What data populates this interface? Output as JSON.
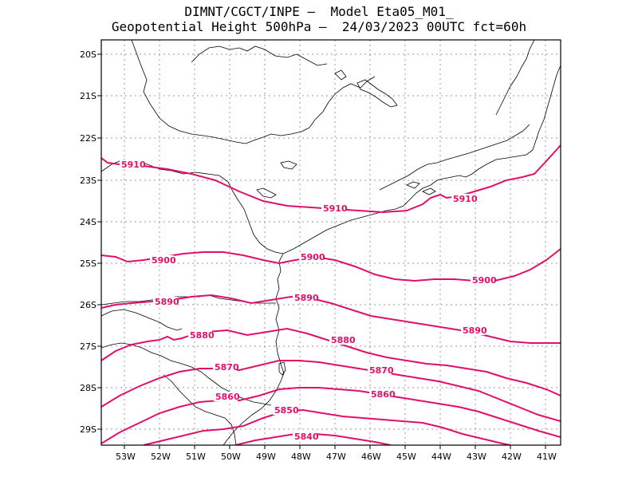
{
  "title": {
    "line1": "DIMNT/CGCT/INPE –  Model Eta05_M01_",
    "line2": "Geopotential Height 500hPa –  24/03/2023 00UTC fct=60h"
  },
  "axes": {
    "lat_labels": [
      "20S",
      "21S",
      "22S",
      "23S",
      "24S",
      "25S",
      "26S",
      "27S",
      "28S",
      "29S"
    ],
    "lon_labels": [
      "53W",
      "52W",
      "51W",
      "50W",
      "49W",
      "48W",
      "47W",
      "46W",
      "45W",
      "44W",
      "43W",
      "42W",
      "41W"
    ]
  },
  "colors": {
    "contour": "#e0106a",
    "coastline": "#000000",
    "grid": "#9a9a9a"
  },
  "contours": {
    "unit": "gpm",
    "levels": [
      5910,
      5900,
      5890,
      5880,
      5870,
      5860,
      5850,
      5840
    ],
    "labels": [
      "5910",
      "5910",
      "5900",
      "5900",
      "5900",
      "5890",
      "5890",
      "5890",
      "5880",
      "5880",
      "5870",
      "5870",
      "5860",
      "5860",
      "5850",
      "5840"
    ]
  }
}
